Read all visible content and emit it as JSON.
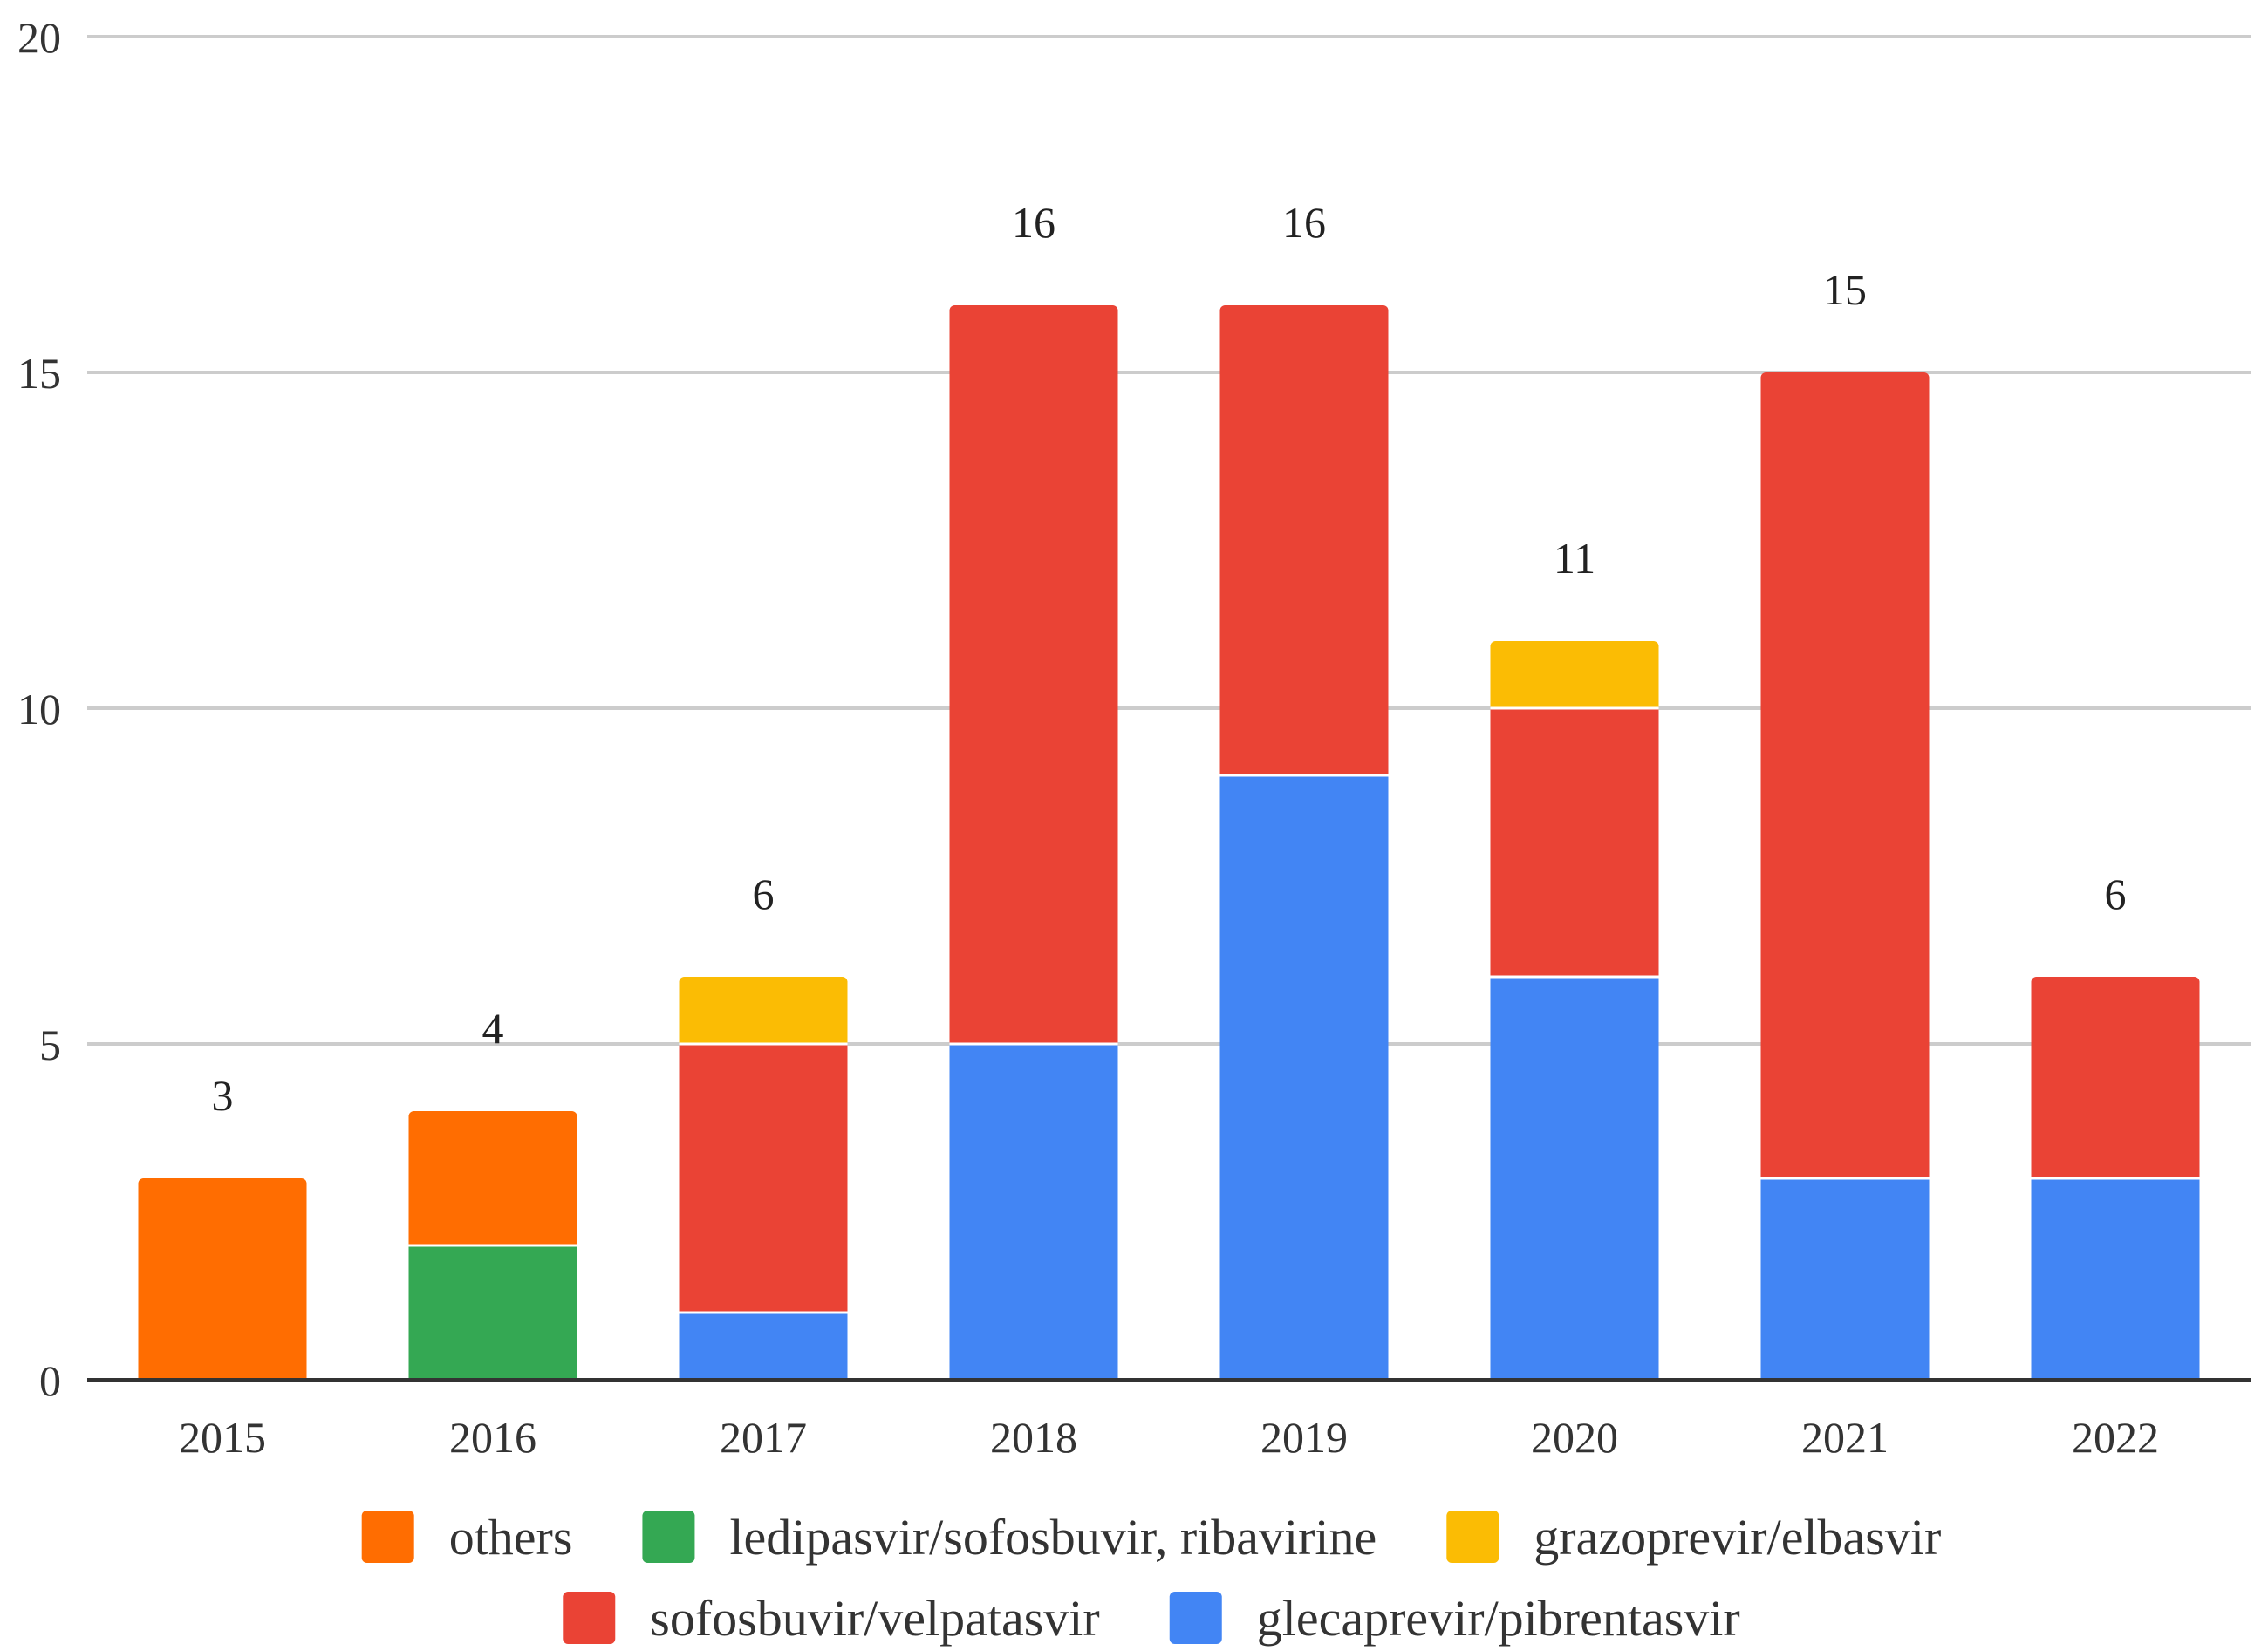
{
  "chart_data": {
    "type": "bar",
    "stacked": true,
    "title": "",
    "xlabel": "",
    "ylabel": "",
    "ylim": [
      0,
      20
    ],
    "yticks": [
      0,
      5,
      10,
      15,
      20
    ],
    "grid": true,
    "legend_position": "bottom",
    "categories": [
      "2015",
      "2016",
      "2017",
      "2018",
      "2019",
      "2020",
      "2021",
      "2022"
    ],
    "totals": [
      3,
      4,
      6,
      16,
      16,
      11,
      15,
      6
    ],
    "series": [
      {
        "name": "glecaprevir/pibrentasvir",
        "color": "#4285F4",
        "values": [
          0,
          0,
          1,
          5,
          9,
          6,
          3,
          3
        ]
      },
      {
        "name": "sofosbuvir/velpatasvir",
        "color": "#EA4335",
        "values": [
          0,
          0,
          4,
          11,
          7,
          4,
          12,
          3
        ]
      },
      {
        "name": "grazoprevir/elbasvir",
        "color": "#FBBC04",
        "values": [
          0,
          0,
          1,
          0,
          0,
          1,
          0,
          0
        ]
      },
      {
        "name": "ledipasvir/sofosbuvir, ribavirine",
        "color": "#34A853",
        "values": [
          0,
          2,
          0,
          0,
          0,
          0,
          0,
          0
        ]
      },
      {
        "name": "others",
        "color": "#FF6D01",
        "values": [
          3,
          2,
          0,
          0,
          0,
          0,
          0,
          0
        ]
      }
    ],
    "legend_order": [
      "others",
      "ledipasvir/sofosbuvir, ribavirine",
      "grazoprevir/elbasvir",
      "sofosbuvir/velpatasvir",
      "glecaprevir/pibrentasvir"
    ]
  }
}
